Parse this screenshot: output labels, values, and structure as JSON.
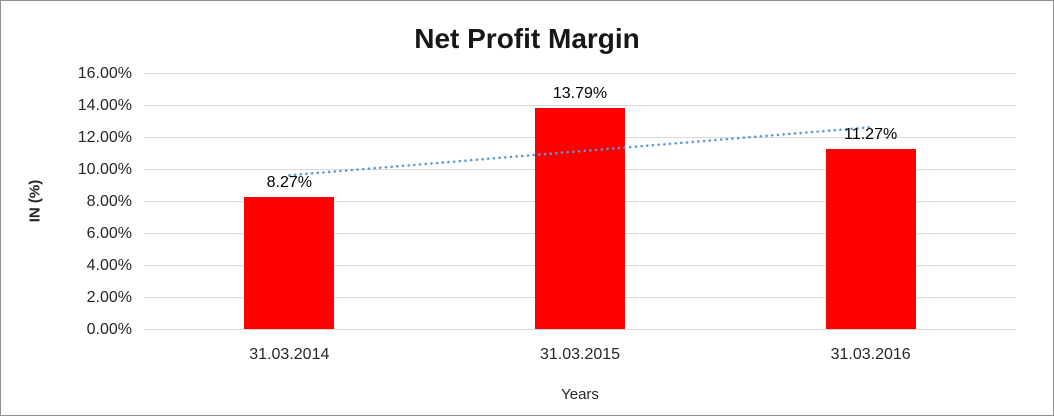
{
  "chart_data": {
    "type": "bar",
    "title": "Net Profit Margin",
    "categories": [
      "31.03.2014",
      "31.03.2015",
      "31.03.2016"
    ],
    "values": [
      8.27,
      13.79,
      11.27
    ],
    "data_labels": [
      "8.27%",
      "13.79%",
      "11.27%"
    ],
    "xlabel": "Years",
    "ylabel": "IN (%)",
    "ylim": [
      0,
      16
    ],
    "y_tick_step": 2,
    "y_ticks": [
      0,
      2,
      4,
      6,
      8,
      10,
      12,
      14,
      16
    ],
    "y_tick_labels": [
      "0.00%",
      "2.00%",
      "4.00%",
      "6.00%",
      "8.00%",
      "10.00%",
      "12.00%",
      "14.00%",
      "16.00%"
    ],
    "grid": true,
    "legend": "none",
    "bar_color": "#FF0000",
    "trendline": {
      "type": "linear",
      "style": "dotted",
      "color": "#5B9BD5",
      "endpoint_values": [
        9.61,
        12.61
      ]
    }
  }
}
